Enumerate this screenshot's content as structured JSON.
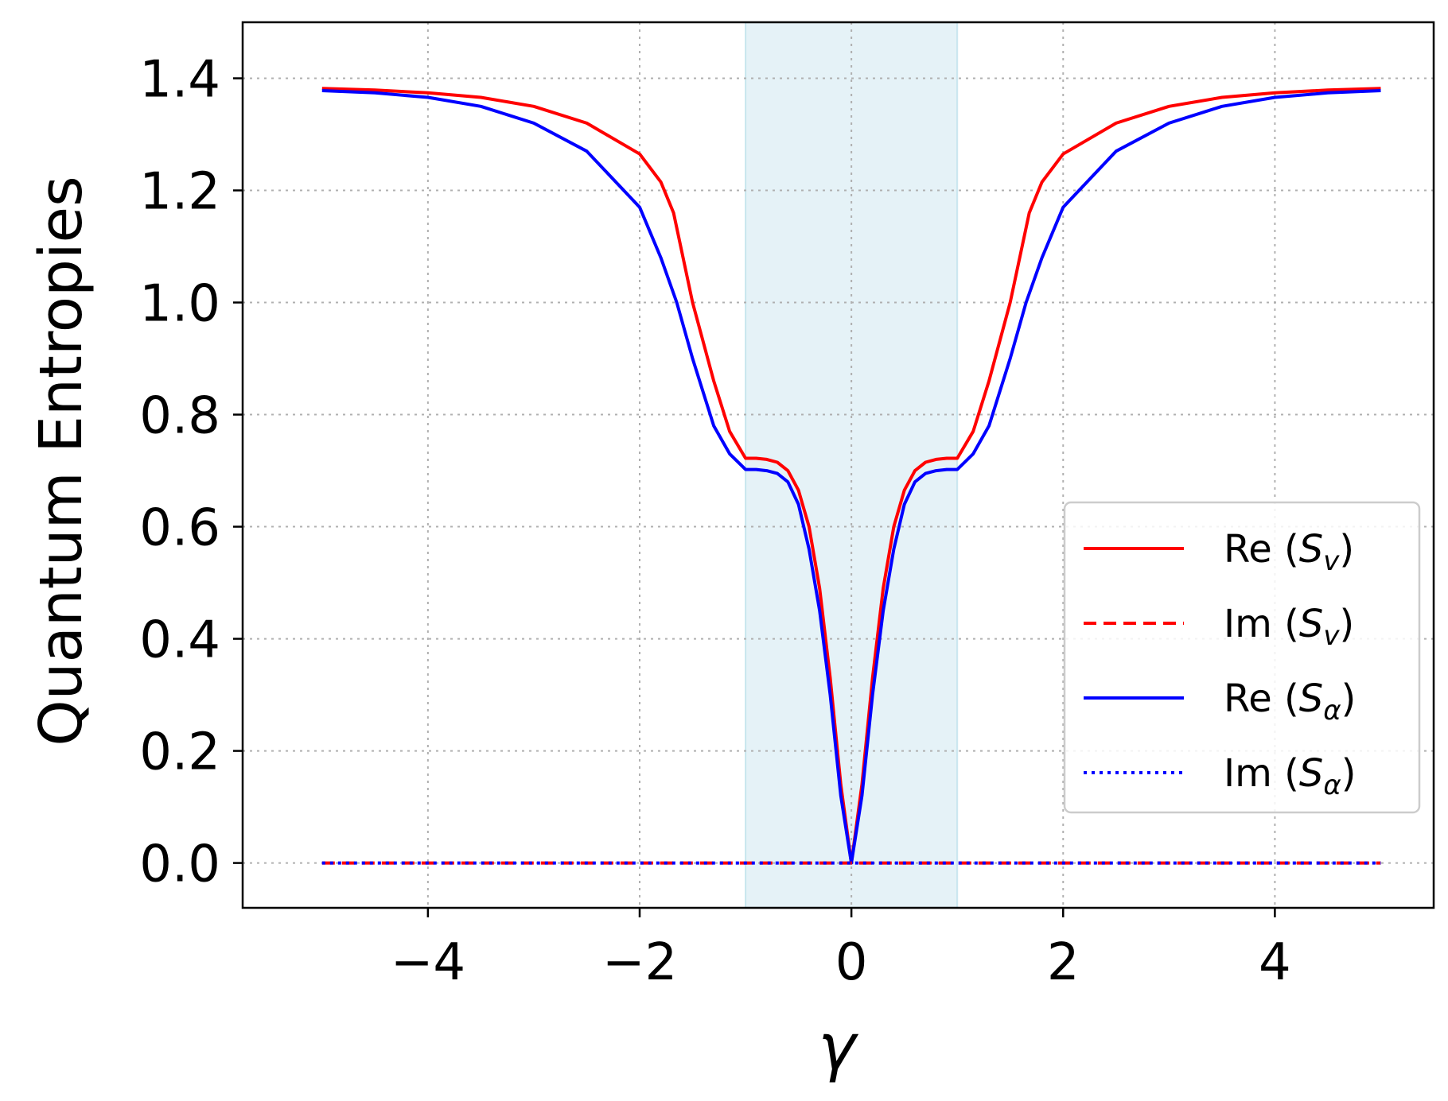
{
  "chart_data": {
    "type": "line",
    "xlabel": "γ",
    "ylabel": "Quantum Entropies",
    "xlim": [
      -5.75,
      5.5
    ],
    "ylim": [
      -0.08,
      1.5
    ],
    "xticks": [
      -4,
      -2,
      0,
      2,
      4
    ],
    "xtick_labels": [
      "−4",
      "−2",
      "0",
      "2",
      "4"
    ],
    "yticks": [
      0.0,
      0.2,
      0.4,
      0.6,
      0.8,
      1.0,
      1.2,
      1.4
    ],
    "ytick_labels": [
      "0.0",
      "0.2",
      "0.4",
      "0.6",
      "0.8",
      "1.0",
      "1.2",
      "1.4"
    ],
    "grid": true,
    "shaded_region": {
      "x": [
        -1,
        1
      ],
      "color": "#add8e6"
    },
    "legend_position": "center-right",
    "series": [
      {
        "name": "Re (Sv)",
        "label_main": "Re (",
        "label_symbol": "S",
        "label_sub": "v",
        "label_close": ")",
        "color": "#ff0000",
        "style": "solid",
        "x": [
          -5,
          -4.5,
          -4,
          -3.5,
          -3,
          -2.5,
          -2,
          -1.8,
          -1.68,
          -1.5,
          -1.3,
          -1.15,
          -1.0,
          -0.9,
          -0.8,
          -0.7,
          -0.6,
          -0.5,
          -0.4,
          -0.3,
          -0.2,
          -0.1,
          0,
          0.1,
          0.2,
          0.3,
          0.4,
          0.5,
          0.6,
          0.7,
          0.8,
          0.9,
          1.0,
          1.15,
          1.3,
          1.5,
          1.68,
          1.8,
          2,
          2.5,
          3,
          3.5,
          4,
          4.5,
          5
        ],
        "y": [
          1.382,
          1.379,
          1.374,
          1.366,
          1.35,
          1.32,
          1.265,
          1.215,
          1.16,
          1.0,
          0.86,
          0.77,
          0.722,
          0.722,
          0.72,
          0.715,
          0.7,
          0.665,
          0.6,
          0.49,
          0.33,
          0.14,
          0.0,
          0.14,
          0.33,
          0.49,
          0.6,
          0.665,
          0.7,
          0.715,
          0.72,
          0.722,
          0.722,
          0.77,
          0.86,
          1.0,
          1.16,
          1.215,
          1.265,
          1.32,
          1.35,
          1.366,
          1.374,
          1.379,
          1.382
        ]
      },
      {
        "name": "Im (Sv)",
        "label_main": "Im (",
        "label_symbol": "S",
        "label_sub": "v",
        "label_close": ")",
        "color": "#ff0000",
        "style": "dashed",
        "x": [
          -5,
          5
        ],
        "y": [
          0,
          0
        ]
      },
      {
        "name": "Re (Sα)",
        "label_main": "Re (",
        "label_symbol": "S",
        "label_sub": "α",
        "label_close": ")",
        "color": "#0000ff",
        "style": "solid",
        "x": [
          -5,
          -4.5,
          -4,
          -3.5,
          -3,
          -2.5,
          -2,
          -1.8,
          -1.65,
          -1.5,
          -1.3,
          -1.15,
          -1.0,
          -0.9,
          -0.8,
          -0.7,
          -0.6,
          -0.5,
          -0.4,
          -0.3,
          -0.2,
          -0.1,
          0,
          0.1,
          0.2,
          0.3,
          0.4,
          0.5,
          0.6,
          0.7,
          0.8,
          0.9,
          1.0,
          1.15,
          1.3,
          1.5,
          1.65,
          1.8,
          2,
          2.5,
          3,
          3.5,
          4,
          4.5,
          5
        ],
        "y": [
          1.378,
          1.374,
          1.366,
          1.35,
          1.32,
          1.27,
          1.17,
          1.08,
          1.0,
          0.9,
          0.78,
          0.73,
          0.702,
          0.702,
          0.7,
          0.695,
          0.68,
          0.64,
          0.56,
          0.45,
          0.3,
          0.12,
          0.0,
          0.12,
          0.3,
          0.45,
          0.56,
          0.64,
          0.68,
          0.695,
          0.7,
          0.702,
          0.702,
          0.73,
          0.78,
          0.9,
          1.0,
          1.08,
          1.17,
          1.27,
          1.32,
          1.35,
          1.366,
          1.374,
          1.378
        ]
      },
      {
        "name": "Im (Sα)",
        "label_main": "Im (",
        "label_symbol": "S",
        "label_sub": "α",
        "label_close": ")",
        "color": "#0000ff",
        "style": "dotted",
        "x": [
          -5,
          5
        ],
        "y": [
          0,
          0
        ]
      }
    ]
  }
}
